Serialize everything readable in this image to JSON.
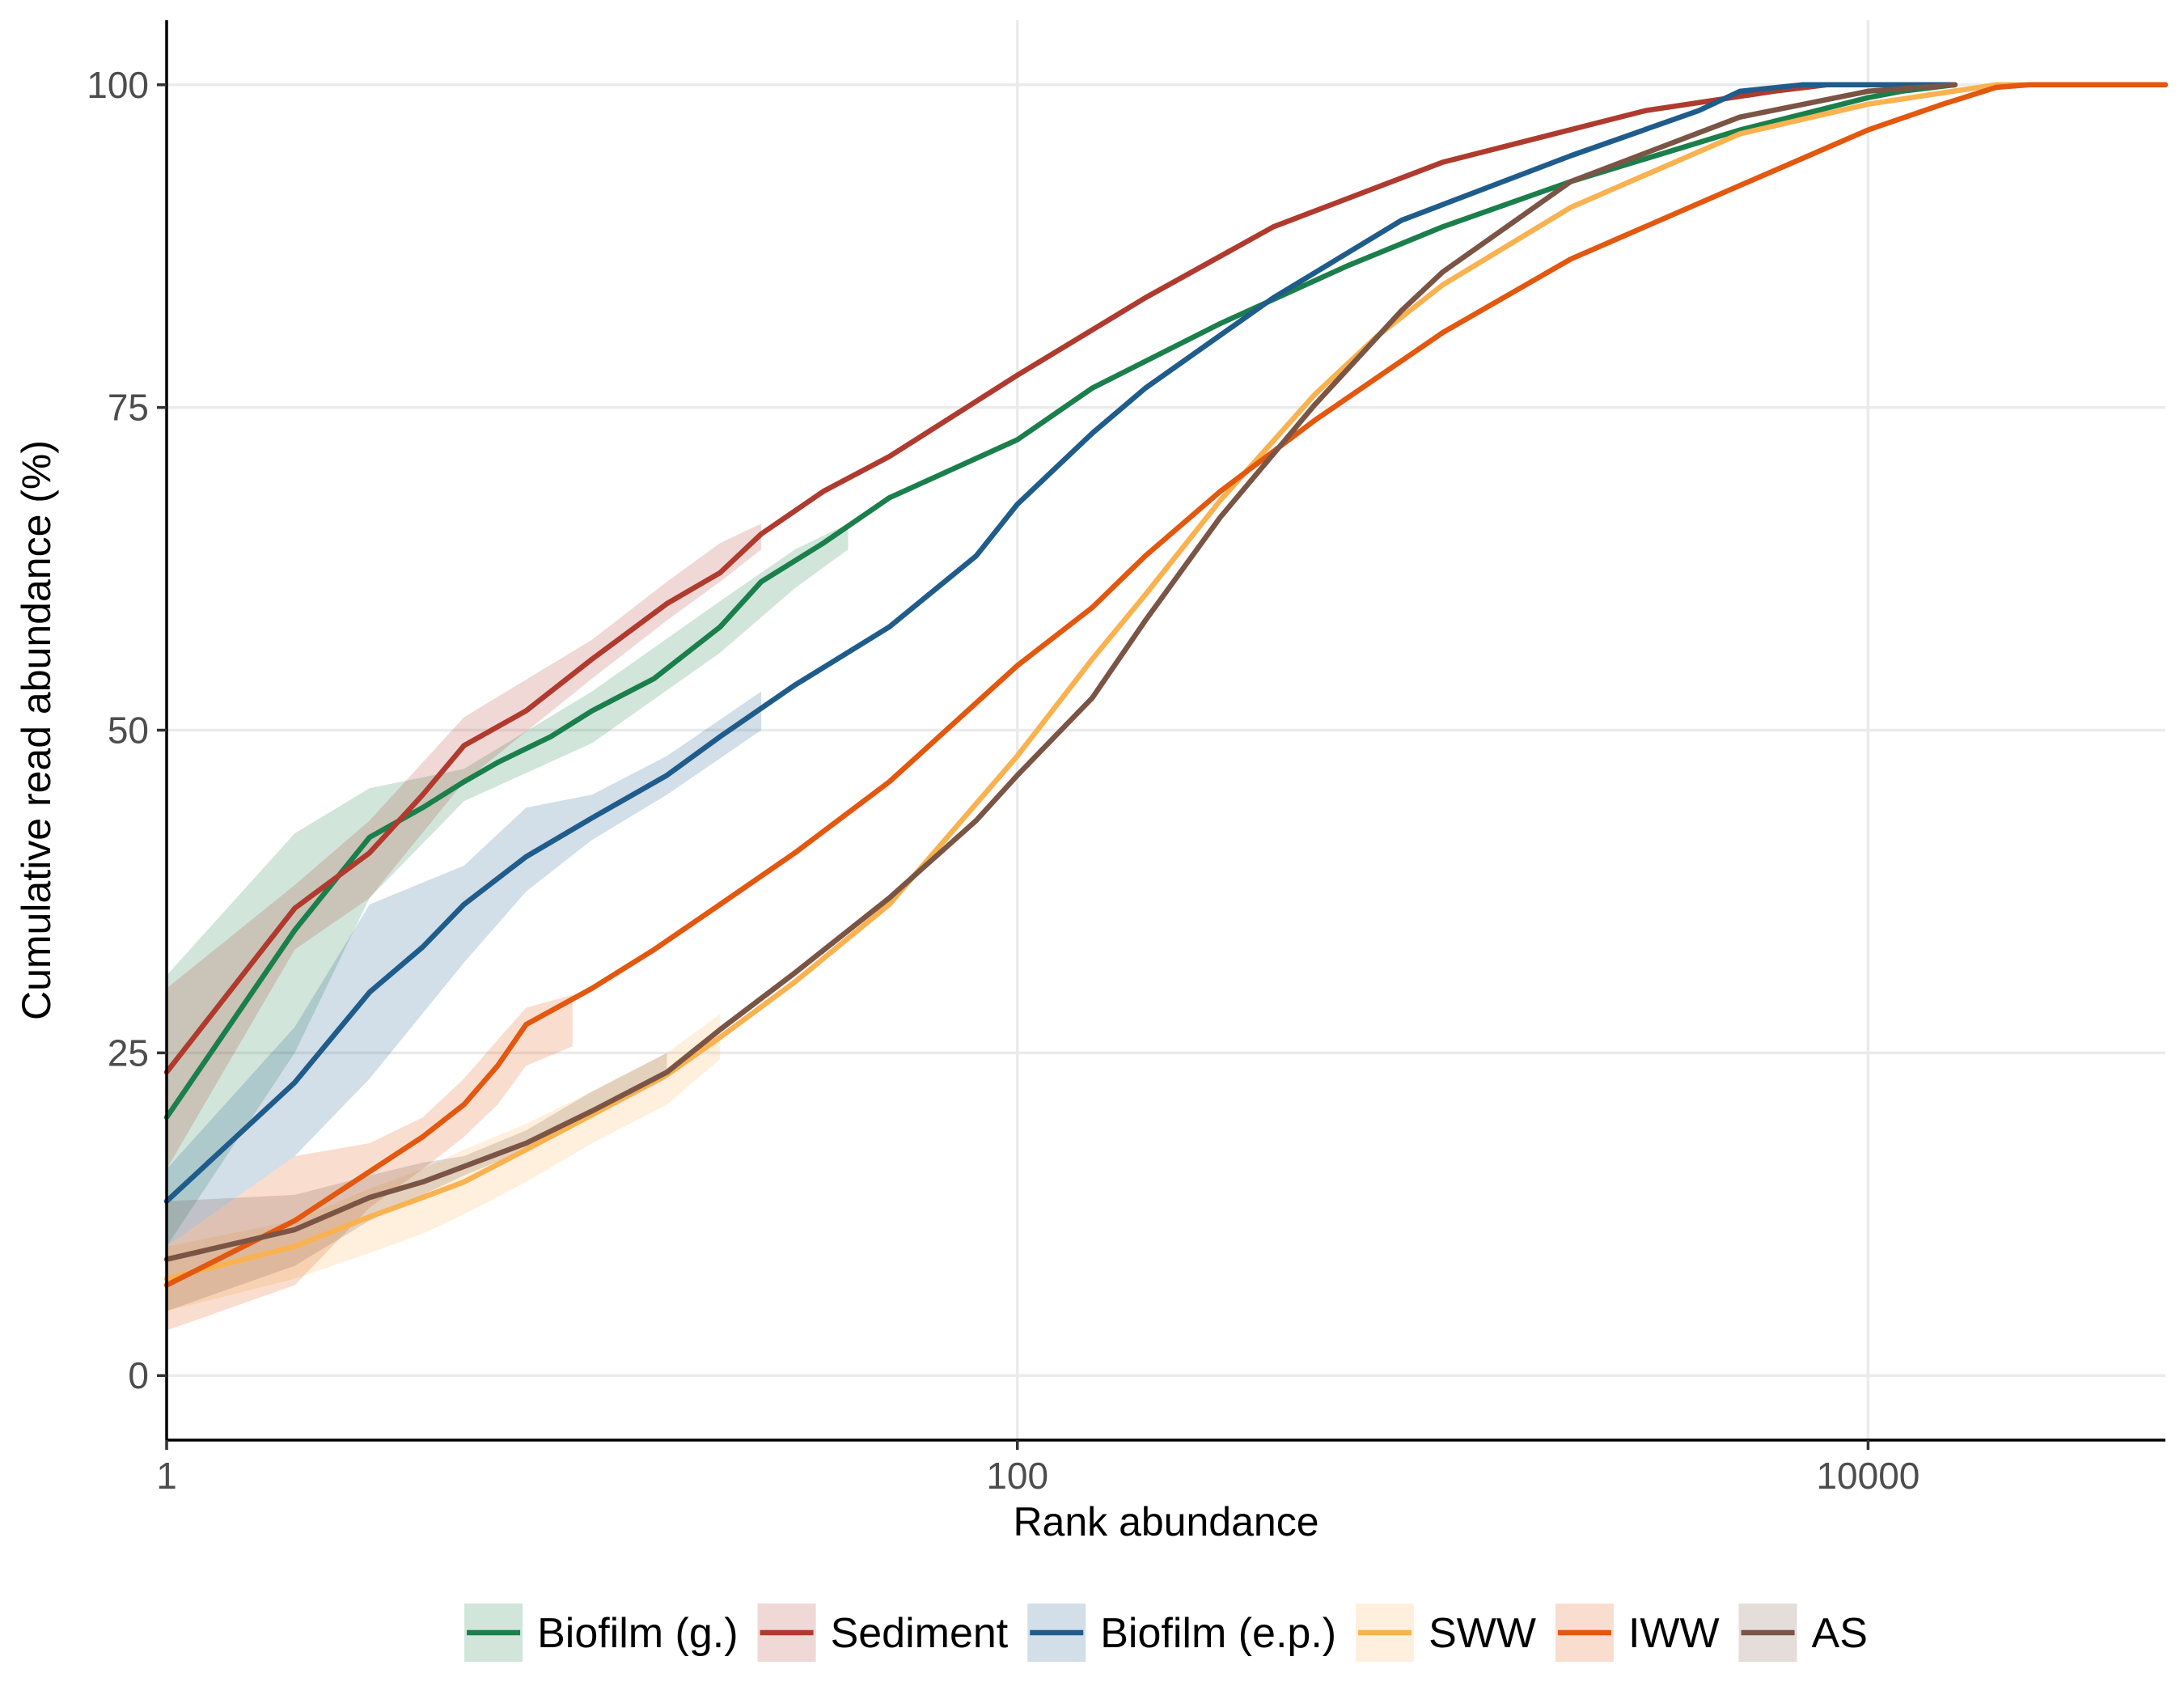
{
  "chart_data": {
    "type": "line",
    "xlabel": "Rank abundance",
    "ylabel": "Cumulative read abundance (%)",
    "x_scale": "log10",
    "xlim": [
      1,
      50000
    ],
    "ylim": [
      -5,
      105
    ],
    "x_ticks": [
      1,
      100,
      10000
    ],
    "x_tick_labels": [
      "1",
      "100",
      "10000"
    ],
    "y_ticks": [
      0,
      25,
      50,
      75,
      100
    ],
    "y_tick_labels": [
      "0",
      "25",
      "50",
      "75",
      "100"
    ],
    "grid": true,
    "legend_position": "bottom",
    "series": [
      {
        "name": "Biofilm (g.)",
        "color": "#1a7f4b",
        "points": [
          [
            1,
            20
          ],
          [
            2,
            34.5
          ],
          [
            3,
            41.7
          ],
          [
            4,
            44
          ],
          [
            5,
            46
          ],
          [
            6,
            47.5
          ],
          [
            8,
            49.5
          ],
          [
            10,
            51.5
          ],
          [
            14,
            54
          ],
          [
            20,
            58
          ],
          [
            25,
            61.5
          ],
          [
            35,
            64.5
          ],
          [
            50,
            68
          ],
          [
            100,
            72.5
          ],
          [
            150,
            76.5
          ],
          [
            300,
            81.5
          ],
          [
            600,
            86
          ],
          [
            1000,
            89
          ],
          [
            2000,
            92.5
          ],
          [
            5000,
            96.5
          ],
          [
            10000,
            99
          ],
          [
            12000,
            99.5
          ],
          [
            16000,
            100
          ]
        ],
        "band": [
          [
            1,
            10,
            31
          ],
          [
            2,
            25,
            42
          ],
          [
            3,
            37,
            45.5
          ],
          [
            5,
            44.5,
            47
          ],
          [
            10,
            49,
            53
          ],
          [
            20,
            56,
            60
          ],
          [
            30,
            61,
            64
          ],
          [
            40,
            64,
            66
          ]
        ]
      },
      {
        "name": "Sediment",
        "color": "#b03a2e",
        "points": [
          [
            1,
            23.5
          ],
          [
            2,
            36.2
          ],
          [
            3,
            40.5
          ],
          [
            4,
            45
          ],
          [
            5,
            48.8
          ],
          [
            7,
            51.5
          ],
          [
            10,
            55.5
          ],
          [
            15,
            59.8
          ],
          [
            20,
            62.2
          ],
          [
            25,
            65.2
          ],
          [
            35,
            68.5
          ],
          [
            50,
            71.2
          ],
          [
            100,
            77.5
          ],
          [
            200,
            83.5
          ],
          [
            400,
            89
          ],
          [
            1000,
            94
          ],
          [
            3000,
            98
          ],
          [
            6000,
            99.5
          ],
          [
            8000,
            100
          ],
          [
            16000,
            100
          ]
        ],
        "band": [
          [
            1,
            16,
            30
          ],
          [
            2,
            33,
            38
          ],
          [
            3,
            37,
            43
          ],
          [
            5,
            46,
            51
          ],
          [
            10,
            54,
            57
          ],
          [
            15,
            58.5,
            61.5
          ],
          [
            20,
            61.5,
            64.5
          ],
          [
            25,
            64,
            66
          ]
        ]
      },
      {
        "name": "Biofilm (e.p.)",
        "color": "#1f5c8b",
        "points": [
          [
            1,
            13.5
          ],
          [
            2,
            22.7
          ],
          [
            3,
            29.7
          ],
          [
            4,
            33.2
          ],
          [
            5,
            36.5
          ],
          [
            7,
            40.2
          ],
          [
            10,
            43.2
          ],
          [
            15,
            46.5
          ],
          [
            20,
            49.5
          ],
          [
            30,
            53.5
          ],
          [
            50,
            58
          ],
          [
            80,
            63.5
          ],
          [
            100,
            67.5
          ],
          [
            150,
            73
          ],
          [
            200,
            76.5
          ],
          [
            400,
            83.5
          ],
          [
            800,
            89.5
          ],
          [
            2000,
            94.5
          ],
          [
            4000,
            98
          ],
          [
            5000,
            99.5
          ],
          [
            7000,
            100
          ],
          [
            16000,
            100
          ]
        ],
        "band": [
          [
            1,
            10,
            16
          ],
          [
            2,
            17,
            27
          ],
          [
            3,
            23,
            36.5
          ],
          [
            5,
            32,
            39.5
          ],
          [
            7,
            37.5,
            44
          ],
          [
            10,
            41.5,
            45
          ],
          [
            15,
            45,
            48
          ],
          [
            25,
            50,
            53
          ]
        ]
      },
      {
        "name": "SWW",
        "color": "#f9b24f",
        "points": [
          [
            1,
            7.5
          ],
          [
            2,
            10
          ],
          [
            3,
            12.3
          ],
          [
            4,
            13.8
          ],
          [
            5,
            15
          ],
          [
            7,
            17.5
          ],
          [
            10,
            20.2
          ],
          [
            15,
            23.3
          ],
          [
            20,
            26.2
          ],
          [
            30,
            30.5
          ],
          [
            50,
            36.5
          ],
          [
            100,
            48
          ],
          [
            150,
            55.5
          ],
          [
            200,
            60.5
          ],
          [
            300,
            67.8
          ],
          [
            500,
            76
          ],
          [
            700,
            80.5
          ],
          [
            1000,
            84.5
          ],
          [
            2000,
            90.5
          ],
          [
            5000,
            96.2
          ],
          [
            10000,
            98.5
          ],
          [
            20000,
            100
          ],
          [
            50000,
            100
          ]
        ],
        "band": [
          [
            1,
            5,
            10
          ],
          [
            2,
            7.5,
            12
          ],
          [
            3,
            9.5,
            14.5
          ],
          [
            4,
            11,
            16
          ],
          [
            5,
            12.5,
            17.5
          ],
          [
            7,
            15,
            19.5
          ],
          [
            10,
            18,
            22
          ],
          [
            15,
            21,
            25
          ],
          [
            20,
            24.5,
            28
          ]
        ]
      },
      {
        "name": "IWW",
        "color": "#e3570e",
        "points": [
          [
            1,
            7
          ],
          [
            2,
            12
          ],
          [
            3,
            15.8
          ],
          [
            4,
            18.5
          ],
          [
            5,
            21
          ],
          [
            6,
            24
          ],
          [
            7,
            27.2
          ],
          [
            10,
            30
          ],
          [
            14,
            33
          ],
          [
            20,
            36.5
          ],
          [
            30,
            40.5
          ],
          [
            50,
            46
          ],
          [
            100,
            55
          ],
          [
            150,
            59.5
          ],
          [
            200,
            63.5
          ],
          [
            300,
            68.5
          ],
          [
            500,
            74
          ],
          [
            1000,
            80.8
          ],
          [
            2000,
            86.5
          ],
          [
            5000,
            92.2
          ],
          [
            10000,
            96.5
          ],
          [
            15000,
            98.5
          ],
          [
            20000,
            99.8
          ],
          [
            24000,
            100
          ],
          [
            50000,
            100
          ]
        ],
        "band": [
          [
            1,
            3.5,
            10
          ],
          [
            2,
            7,
            17
          ],
          [
            3,
            13,
            18
          ],
          [
            4,
            16,
            20
          ],
          [
            5,
            18.5,
            23
          ],
          [
            6,
            21,
            26
          ],
          [
            7,
            24,
            28.5
          ],
          [
            9,
            25.5,
            29.5
          ]
        ]
      },
      {
        "name": "AS",
        "color": "#7a5444",
        "points": [
          [
            1,
            9
          ],
          [
            2,
            11.3
          ],
          [
            3,
            13.8
          ],
          [
            4,
            15
          ],
          [
            5,
            16.2
          ],
          [
            7,
            18
          ],
          [
            10,
            20.5
          ],
          [
            15,
            23.5
          ],
          [
            20,
            26.8
          ],
          [
            30,
            31.2
          ],
          [
            50,
            37
          ],
          [
            80,
            43
          ],
          [
            100,
            46.5
          ],
          [
            150,
            52.5
          ],
          [
            200,
            58.5
          ],
          [
            300,
            66.5
          ],
          [
            500,
            75.2
          ],
          [
            800,
            82.5
          ],
          [
            1000,
            85.5
          ],
          [
            2000,
            92.5
          ],
          [
            5000,
            97.5
          ],
          [
            10000,
            99.5
          ],
          [
            16000,
            100
          ]
        ],
        "band": [
          [
            1,
            5,
            13.5
          ],
          [
            2,
            8.5,
            14
          ],
          [
            3,
            12,
            15.5
          ],
          [
            4,
            14,
            16.5
          ],
          [
            5,
            15.5,
            17
          ],
          [
            7,
            17.5,
            19
          ],
          [
            10,
            20,
            22
          ],
          [
            15,
            23,
            25
          ]
        ]
      }
    ]
  }
}
